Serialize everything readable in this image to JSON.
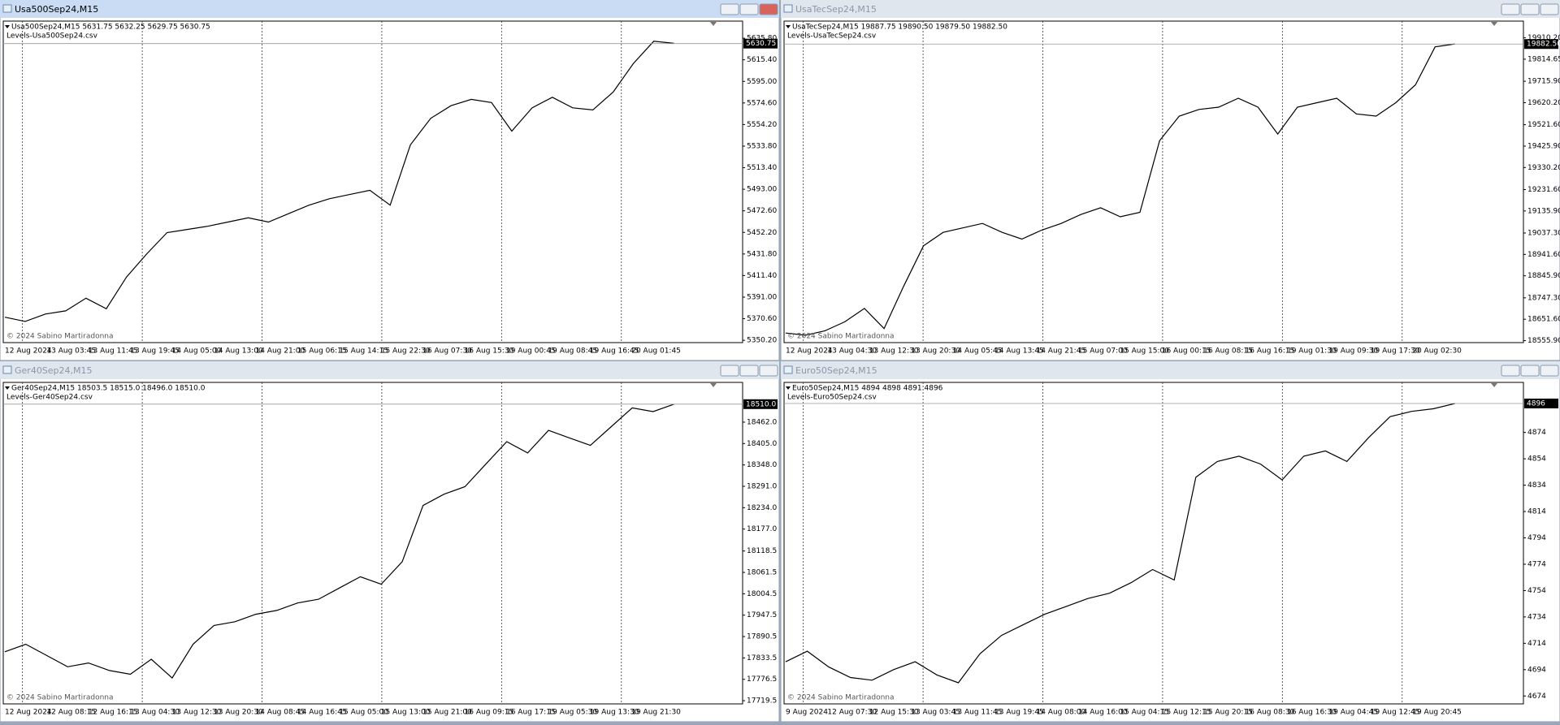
{
  "windows": [
    {
      "title": "Usa500Sep24,M15",
      "info": "Usa500Sep24,M15  5631.75 5632.25 5629.75 5630.75",
      "levels_file": "Levels-Usa500Sep24.csv",
      "copyright": "© 2024 Sabino Martiradonna",
      "chart": {
        "type": "line",
        "values": [
          5372,
          5368,
          5375,
          5378,
          5390,
          5380,
          5410,
          5432,
          5452,
          5455,
          5458,
          5462,
          5466,
          5462,
          5470,
          5478,
          5484,
          5488,
          5492,
          5478,
          5535,
          5560,
          5572,
          5578,
          5575,
          5548,
          5570,
          5580,
          5570,
          5568,
          5585,
          5612,
          5633,
          5631
        ],
        "ylim": [
          5348,
          5652
        ],
        "yticks": [
          {
            "value": 5635.8,
            "label": "5635.80"
          },
          {
            "value": 5615.4,
            "label": "5615.40"
          },
          {
            "value": 5595,
            "label": "5595.00"
          },
          {
            "value": 5574.6,
            "label": "5574.60"
          },
          {
            "value": 5554.2,
            "label": "5554.20"
          },
          {
            "value": 5533.8,
            "label": "5533.80"
          },
          {
            "value": 5513.4,
            "label": "5513.40"
          },
          {
            "value": 5493,
            "label": "5493.00"
          },
          {
            "value": 5472.6,
            "label": "5472.60"
          },
          {
            "value": 5452.2,
            "label": "5452.20"
          },
          {
            "value": 5431.8,
            "label": "5431.80"
          },
          {
            "value": 5411.4,
            "label": "5411.40"
          },
          {
            "value": 5391,
            "label": "5391.00"
          },
          {
            "value": 5370.6,
            "label": "5370.60"
          },
          {
            "value": 5350.2,
            "label": "5350.20"
          }
        ],
        "x_labels": [
          "12 Aug 2024",
          "13 Aug 03:45",
          "13 Aug 11:45",
          "13 Aug 19:45",
          "14 Aug 05:00",
          "14 Aug 13:00",
          "14 Aug 21:00",
          "15 Aug 06:15",
          "15 Aug 14:15",
          "15 Aug 22:30",
          "16 Aug 07:30",
          "16 Aug 15:30",
          "19 Aug 00:45",
          "19 Aug 08:45",
          "19 Aug 16:45",
          "20 Aug 01:45"
        ],
        "last": {
          "value": 5630.75,
          "label": "5630.75"
        }
      }
    },
    {
      "title": "UsaTecSep24,M15",
      "info": "UsaTecSep24,M15  19887.75 19890.50 19879.50 19882.50",
      "levels_file": "Levels-UsaTecSep24.csv",
      "copyright": "© 2024 Sabino Martiradonna",
      "chart": {
        "type": "line",
        "values": [
          18590,
          18580,
          18600,
          18640,
          18700,
          18610,
          18800,
          18980,
          19040,
          19060,
          19080,
          19040,
          19010,
          19050,
          19080,
          19120,
          19150,
          19110,
          19130,
          19450,
          19560,
          19590,
          19600,
          19640,
          19600,
          19480,
          19600,
          19620,
          19640,
          19570,
          19560,
          19620,
          19700,
          19870,
          19882.5
        ],
        "ylim": [
          18547,
          19985
        ],
        "yticks": [
          {
            "value": 19910.2,
            "label": "19910.20"
          },
          19814.65,
          {
            "value": 19715.9,
            "label": "19715.90"
          },
          {
            "value": 19620.2,
            "label": "19620.20"
          },
          {
            "value": 19521.6,
            "label": "19521.60"
          },
          {
            "value": 19425.9,
            "label": "19425.90"
          },
          {
            "value": 19330.2,
            "label": "19330.20"
          },
          {
            "value": 19231.6,
            "label": "19231.60"
          },
          {
            "value": 19135.9,
            "label": "19135.90"
          },
          {
            "value": 19037.3,
            "label": "19037.30"
          },
          {
            "value": 18941.6,
            "label": "18941.60"
          },
          {
            "value": 18845.9,
            "label": "18845.90"
          },
          {
            "value": 18747.3,
            "label": "18747.30"
          },
          {
            "value": 18651.6,
            "label": "18651.60"
          },
          {
            "value": 18555.9,
            "label": "18555.90"
          }
        ],
        "x_labels": [
          "12 Aug 2024",
          "13 Aug 04:30",
          "13 Aug 12:30",
          "13 Aug 20:30",
          "14 Aug 05:45",
          "14 Aug 13:45",
          "14 Aug 21:45",
          "15 Aug 07:00",
          "15 Aug 15:00",
          "16 Aug 00:15",
          "16 Aug 08:15",
          "16 Aug 16:15",
          "19 Aug 01:30",
          "19 Aug 09:30",
          "19 Aug 17:30",
          "20 Aug 02:30"
        ],
        "last": {
          "value": 19882.5,
          "label": "19882.50"
        }
      }
    },
    {
      "title": "Ger40Sep24,M15",
      "info": "Ger40Sep24,M15  18503.5 18515.0 18496.0 18510.0",
      "levels_file": "Levels-Ger40Sep24.csv",
      "copyright": "© 2024 Sabino Martiradonna",
      "chart": {
        "type": "line",
        "values": [
          17850,
          17870,
          17840,
          17810,
          17820,
          17800,
          17790,
          17830,
          17780,
          17870,
          17920,
          17930,
          17950,
          17960,
          17980,
          17990,
          18020,
          18050,
          18030,
          18090,
          18240,
          18270,
          18290,
          18350,
          18410,
          18380,
          18440,
          18420,
          18400,
          18450,
          18500,
          18490,
          18510
        ],
        "ylim": [
          17711,
          18568
        ],
        "yticks": [
          {
            "value": 18462,
            "label": "18462.0"
          },
          {
            "value": 18405,
            "label": "18405.0"
          },
          {
            "value": 18348,
            "label": "18348.0"
          },
          {
            "value": 18291,
            "label": "18291.0"
          },
          {
            "value": 18234,
            "label": "18234.0"
          },
          {
            "value": 18177,
            "label": "18177.0"
          },
          18118.5,
          18061.5,
          18004.5,
          17947.5,
          17890.5,
          17833.5,
          17776.5,
          17719.5
        ],
        "x_labels": [
          "12 Aug 2024",
          "12 Aug 08:15",
          "12 Aug 16:15",
          "13 Aug 04:30",
          "13 Aug 12:30",
          "13 Aug 20:30",
          "14 Aug 08:45",
          "14 Aug 16:45",
          "15 Aug 05:00",
          "15 Aug 13:00",
          "15 Aug 21:00",
          "16 Aug 09:15",
          "16 Aug 17:15",
          "19 Aug 05:30",
          "19 Aug 13:30",
          "19 Aug 21:30"
        ],
        "last": {
          "value": 18510,
          "label": "18510.0"
        }
      }
    },
    {
      "title": "Euro50Sep24,M15",
      "info": "Euro50Sep24,M15  4894 4898 4891 4896",
      "levels_file": "Levels-Euro50Sep24.csv",
      "copyright": "© 2024 Sabino Martiradonna",
      "chart": {
        "type": "line",
        "values": [
          4700,
          4708,
          4696,
          4688,
          4686,
          4694,
          4700,
          4690,
          4684,
          4706,
          4720,
          4728,
          4736,
          4742,
          4748,
          4752,
          4760,
          4770,
          4762,
          4840,
          4852,
          4856,
          4850,
          4838,
          4856,
          4860,
          4852,
          4870,
          4886,
          4890,
          4892,
          4896
        ],
        "ylim": [
          4668,
          4912
        ],
        "yticks": [
          4874,
          4854,
          4834,
          4814,
          4794,
          4774,
          4754,
          4734,
          4714,
          4694,
          4674
        ],
        "x_labels": [
          "9 Aug 2024",
          "12 Aug 07:30",
          "12 Aug 15:30",
          "13 Aug 03:45",
          "13 Aug 11:45",
          "13 Aug 19:45",
          "14 Aug 08:00",
          "14 Aug 16:00",
          "15 Aug 04:15",
          "15 Aug 12:15",
          "15 Aug 20:15",
          "16 Aug 08:30",
          "16 Aug 16:30",
          "19 Aug 04:45",
          "19 Aug 12:45",
          "19 Aug 20:45"
        ],
        "last": 4896
      }
    }
  ]
}
